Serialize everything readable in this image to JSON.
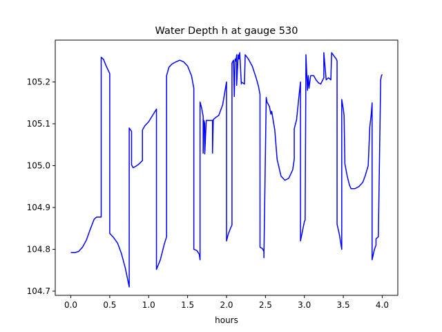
{
  "chart_data": {
    "type": "line",
    "title": "Water Depth h at gauge 530",
    "xlabel": "hours",
    "ylabel": "",
    "xlim": [
      -0.2,
      4.2
    ],
    "ylim": [
      104.69,
      105.3
    ],
    "x_ticks": [
      0.0,
      0.5,
      1.0,
      1.5,
      2.0,
      2.5,
      3.0,
      3.5,
      4.0
    ],
    "x_tick_labels": [
      "0.0",
      "0.5",
      "1.0",
      "1.5",
      "2.0",
      "2.5",
      "3.0",
      "3.5",
      "4.0"
    ],
    "y_ticks": [
      104.7,
      104.8,
      104.9,
      105.0,
      105.1,
      105.2
    ],
    "y_tick_labels": [
      "104.7",
      "104.8",
      "104.9",
      "105.0",
      "105.1",
      "105.2"
    ],
    "grid": false,
    "series": [
      {
        "color": "#0000ff",
        "x": [
          0.0,
          0.05,
          0.1,
          0.15,
          0.2,
          0.25,
          0.3,
          0.33,
          0.36,
          0.38,
          0.39,
          0.39,
          0.42,
          0.45,
          0.5,
          0.5,
          0.55,
          0.6,
          0.65,
          0.7,
          0.75,
          0.75,
          0.78,
          0.78,
          0.8,
          0.83,
          0.87,
          0.92,
          0.92,
          0.95,
          1.0,
          1.05,
          1.1,
          1.1,
          1.15,
          1.2,
          1.23,
          1.23,
          1.26,
          1.3,
          1.35,
          1.4,
          1.45,
          1.5,
          1.55,
          1.58,
          1.58,
          1.62,
          1.65,
          1.66,
          1.66,
          1.68,
          1.7,
          1.7,
          1.71,
          1.72,
          1.72,
          1.74,
          1.78,
          1.82,
          1.82,
          1.83,
          1.86,
          1.9,
          1.95,
          2.0,
          2.0,
          2.02,
          2.05,
          2.07,
          2.07,
          2.09,
          2.1,
          2.11,
          2.12,
          2.13,
          2.13,
          2.15,
          2.16,
          2.17,
          2.19,
          2.19,
          2.23,
          2.24,
          2.28,
          2.33,
          2.38,
          2.41,
          2.43,
          2.43,
          2.46,
          2.48,
          2.48,
          2.51,
          2.52,
          2.55,
          2.57,
          2.58,
          2.62,
          2.65,
          2.7,
          2.75,
          2.8,
          2.85,
          2.87,
          2.87,
          2.9,
          2.93,
          2.95,
          2.95,
          2.98,
          3.0,
          3.01,
          3.02,
          3.02,
          3.04,
          3.05,
          3.06,
          3.08,
          3.12,
          3.15,
          3.18,
          3.21,
          3.25,
          3.25,
          3.28,
          3.31,
          3.34,
          3.35,
          3.38,
          3.41,
          3.42,
          3.42,
          3.45,
          3.48,
          3.48,
          3.5,
          3.51,
          3.52,
          3.52,
          3.55,
          3.58,
          3.6,
          3.65,
          3.7,
          3.75,
          3.78,
          3.82,
          3.84,
          3.86,
          3.87,
          3.87,
          3.9,
          3.92,
          3.92,
          3.95,
          3.98,
          3.99,
          4.0
        ],
        "y": [
          104.792,
          104.792,
          104.795,
          104.805,
          104.822,
          104.848,
          104.872,
          104.877,
          104.877,
          104.877,
          104.877,
          105.259,
          105.254,
          105.24,
          105.22,
          104.838,
          104.828,
          104.815,
          104.79,
          104.755,
          104.71,
          105.09,
          105.082,
          105.002,
          104.995,
          104.998,
          105.003,
          105.012,
          105.085,
          105.095,
          105.105,
          105.12,
          105.135,
          104.752,
          104.775,
          104.812,
          104.83,
          105.215,
          105.235,
          105.243,
          105.248,
          105.252,
          105.248,
          105.238,
          105.215,
          105.185,
          104.8,
          104.797,
          104.788,
          104.775,
          105.152,
          105.138,
          105.118,
          105.03,
          105.108,
          105.1,
          105.028,
          105.108,
          105.108,
          105.108,
          105.03,
          105.11,
          105.115,
          105.12,
          105.145,
          105.2,
          104.82,
          104.835,
          104.85,
          104.858,
          105.245,
          105.252,
          105.165,
          105.255,
          105.25,
          105.265,
          105.192,
          105.265,
          105.255,
          105.27,
          105.195,
          105.2,
          105.195,
          105.265,
          105.255,
          105.238,
          105.21,
          105.19,
          105.17,
          104.805,
          104.802,
          104.795,
          104.78,
          105.163,
          105.152,
          105.142,
          105.123,
          105.13,
          105.085,
          105.015,
          104.975,
          104.965,
          104.97,
          104.99,
          105.015,
          105.088,
          105.11,
          105.165,
          105.2,
          104.82,
          104.848,
          104.866,
          104.87,
          105.255,
          105.265,
          105.18,
          105.215,
          105.185,
          105.215,
          105.215,
          105.205,
          105.198,
          105.195,
          105.21,
          105.27,
          105.205,
          105.21,
          105.205,
          105.27,
          105.262,
          105.255,
          105.25,
          104.86,
          104.835,
          104.8,
          105.158,
          105.135,
          105.12,
          105.01,
          105.005,
          104.975,
          104.953,
          104.945,
          104.945,
          104.95,
          104.96,
          104.975,
          105.0,
          105.092,
          105.125,
          105.15,
          104.775,
          104.8,
          104.81,
          104.825,
          104.83,
          105.205,
          105.215,
          105.218
        ]
      }
    ]
  }
}
